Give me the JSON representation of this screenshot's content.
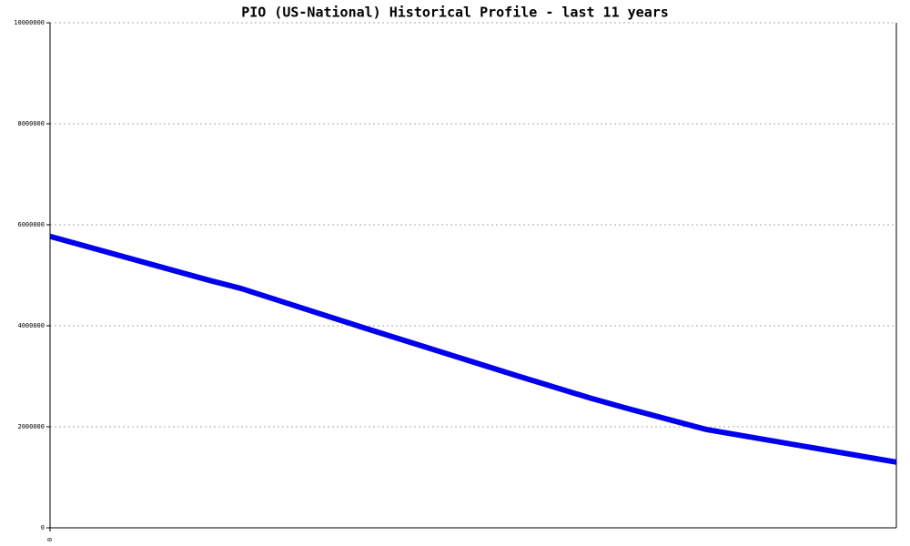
{
  "chart_data": {
    "type": "line",
    "title": "PIO (US-National) Historical Profile - last 11 years",
    "x": [
      0,
      2.07,
      2.48,
      4.08,
      6.03,
      7.04,
      7.51,
      8.52,
      11
    ],
    "series": [
      {
        "name": "PIO",
        "color": "#0000ee",
        "values": [
          5770000,
          4900000,
          4740000,
          3960000,
          3030000,
          2560000,
          2360000,
          1950000,
          1300000
        ]
      }
    ],
    "xlim": [
      0,
      11
    ],
    "xticks": [
      0
    ],
    "ylim": [
      0,
      10000000
    ],
    "yticks": [
      0,
      2000000,
      4000000,
      6000000,
      8000000,
      10000000
    ],
    "grid": true
  }
}
